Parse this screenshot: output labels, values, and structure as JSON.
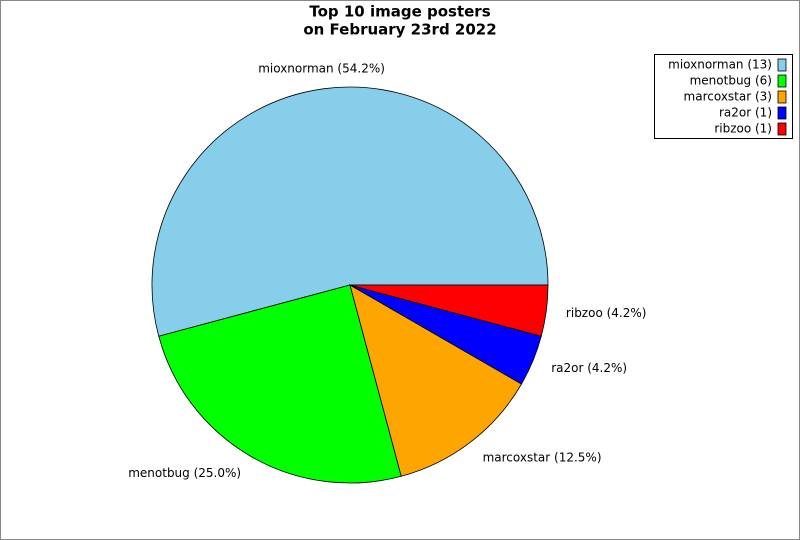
{
  "chart_data": {
    "type": "pie",
    "title": [
      "Top 10 image posters",
      "on February 23rd 2022"
    ],
    "categories": [
      "mioxnorman (13)",
      "menotbug (6)",
      "marcoxstar (3)",
      "ra2or (1)",
      "ribzoo (1)"
    ],
    "values": [
      13,
      6,
      3,
      1,
      1
    ],
    "value_labels": [
      "mioxnorman (54.2%)",
      "menotbug (25.0%)",
      "marcoxstar (12.5%)",
      "ra2or (4.2%)",
      "ribzoo (4.2%)"
    ],
    "colors": [
      "#87ceeb",
      "#00ff00",
      "#ffa500",
      "#0000ff",
      "#ff0000"
    ],
    "legend": "upper right"
  }
}
